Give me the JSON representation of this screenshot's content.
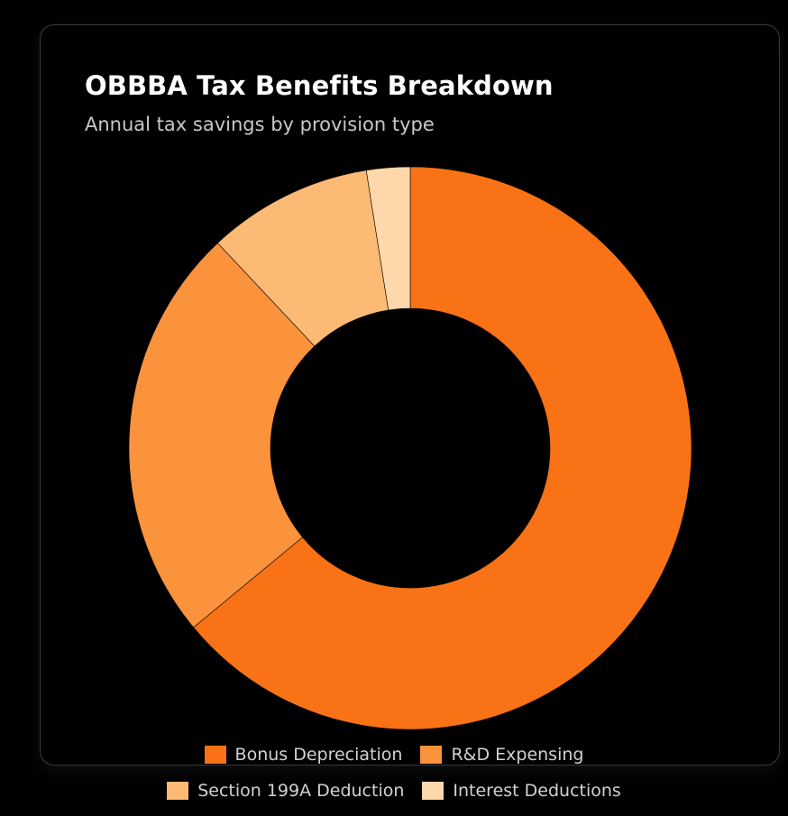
{
  "title": "OBBBA Tax Benefits Breakdown",
  "subtitle": "Annual tax savings by provision type",
  "chart_data": {
    "type": "pie",
    "variant": "doughnut",
    "title": "OBBBA Tax Benefits Breakdown",
    "subtitle": "Annual tax savings by provision type",
    "categories": [
      "Bonus Depreciation",
      "R&D Expensing",
      "Section 199A Deduction",
      "Interest Deductions"
    ],
    "values": [
      64,
      24,
      9.5,
      2.5
    ],
    "colors": [
      "#f97316",
      "#fb923c",
      "#fdba74",
      "#fed7aa"
    ],
    "legend_position": "bottom"
  },
  "legend": {
    "row1": [
      {
        "label": "Bonus Depreciation",
        "color": "#f97316"
      },
      {
        "label": "R&D Expensing",
        "color": "#fb923c"
      }
    ],
    "row2": [
      {
        "label": "Section 199A Deduction",
        "color": "#fdba74"
      },
      {
        "label": "Interest Deductions",
        "color": "#fed7aa"
      }
    ]
  }
}
